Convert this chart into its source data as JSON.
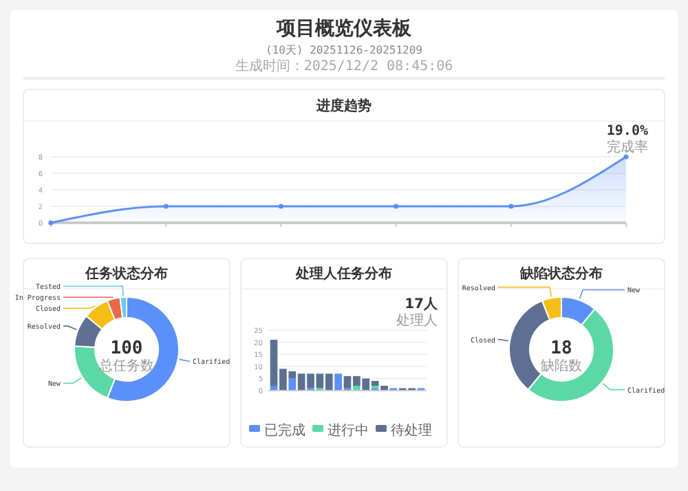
{
  "chart_data": [
    {
      "type": "other",
      "title": "项目概览仪表板",
      "subtitle": "(10天) 20251126-20251209",
      "annotations": [
        "生成时间：2025/12/2 08:45:06"
      ]
    },
    {
      "type": "area",
      "title": "进度趋势",
      "categories": [
        null,
        null,
        null,
        null,
        null,
        null
      ],
      "values": [
        0,
        2,
        2,
        2,
        2,
        8
      ],
      "color": "#5b8ff9",
      "ylim": [
        0,
        8
      ],
      "yticks": [
        0,
        2,
        4,
        6,
        8
      ],
      "grid": "y",
      "marker": "circle",
      "annotations": [
        "19.0%",
        "完成率"
      ]
    },
    {
      "type": "donut",
      "title": "任务状态分布",
      "categories": [
        "Clarified",
        "New",
        "Resolved",
        "Closed",
        "In Progress",
        "Tested"
      ],
      "values": [
        56,
        20,
        10,
        8,
        4,
        2
      ],
      "colors": [
        "#5b8ff9",
        "#5ad8a6",
        "#5d7092",
        "#f6bd16",
        "#e8684a",
        "#6dc8ec"
      ],
      "annotations": [
        "100",
        "总任务数"
      ]
    },
    {
      "type": "bar",
      "title": "处理人任务分布",
      "stacked": true,
      "categories": [
        null,
        null,
        null,
        null,
        null,
        null,
        null,
        null,
        null,
        null,
        null,
        null,
        null,
        null,
        null,
        null,
        null
      ],
      "ylim": [
        0,
        25
      ],
      "yticks": [
        0,
        5,
        10,
        15,
        20,
        25
      ],
      "grid": "y",
      "legend": "bottom",
      "annotations": [
        "17人",
        "处理人"
      ],
      "series": [
        {
          "name": "已完成",
          "color": "#5b8ff9",
          "values": [
            2,
            0,
            5,
            0,
            1,
            0,
            0,
            7,
            1,
            0,
            0,
            1,
            0,
            1,
            0,
            0,
            1
          ]
        },
        {
          "name": "进行中",
          "color": "#5ad8a6",
          "values": [
            0,
            0,
            0,
            0,
            0,
            1,
            0,
            0,
            0,
            2,
            0,
            1,
            0,
            0,
            0,
            0,
            0
          ]
        },
        {
          "name": "待处理",
          "color": "#5d7092",
          "values": [
            19,
            9,
            3,
            7,
            6,
            6,
            7,
            0,
            5,
            4,
            5,
            2,
            2,
            0,
            1,
            1,
            0
          ]
        }
      ]
    },
    {
      "type": "donut",
      "title": "缺陷状态分布",
      "categories": [
        "New",
        "Clarified",
        "Closed",
        "Resolved"
      ],
      "values": [
        11,
        50,
        33,
        6
      ],
      "colors": [
        "#5b8ff9",
        "#5ad8a6",
        "#5d7092",
        "#f6bd16"
      ],
      "annotations": [
        "18",
        "缺陷数"
      ]
    }
  ]
}
